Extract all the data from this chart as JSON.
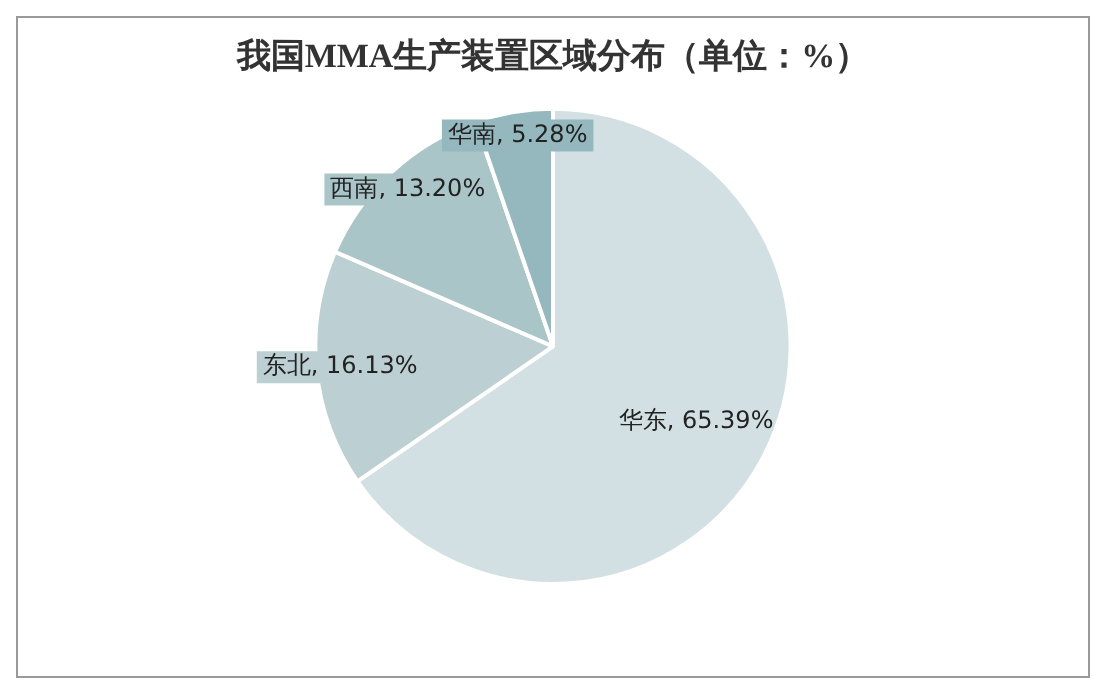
{
  "chart_data": {
    "type": "pie",
    "title": "我国MMA生产装置区域分布（单位：%）",
    "categories": [
      "华东",
      "东北",
      "西南",
      "华南"
    ],
    "values": [
      65.39,
      16.13,
      13.2,
      5.28
    ],
    "value_labels": [
      "65.39%",
      "16.13%",
      "13.20%",
      "5.28%"
    ],
    "colors": [
      "#d3e0e3",
      "#bccfd2",
      "#a9c5c8",
      "#94b8bd"
    ],
    "legend": false
  }
}
